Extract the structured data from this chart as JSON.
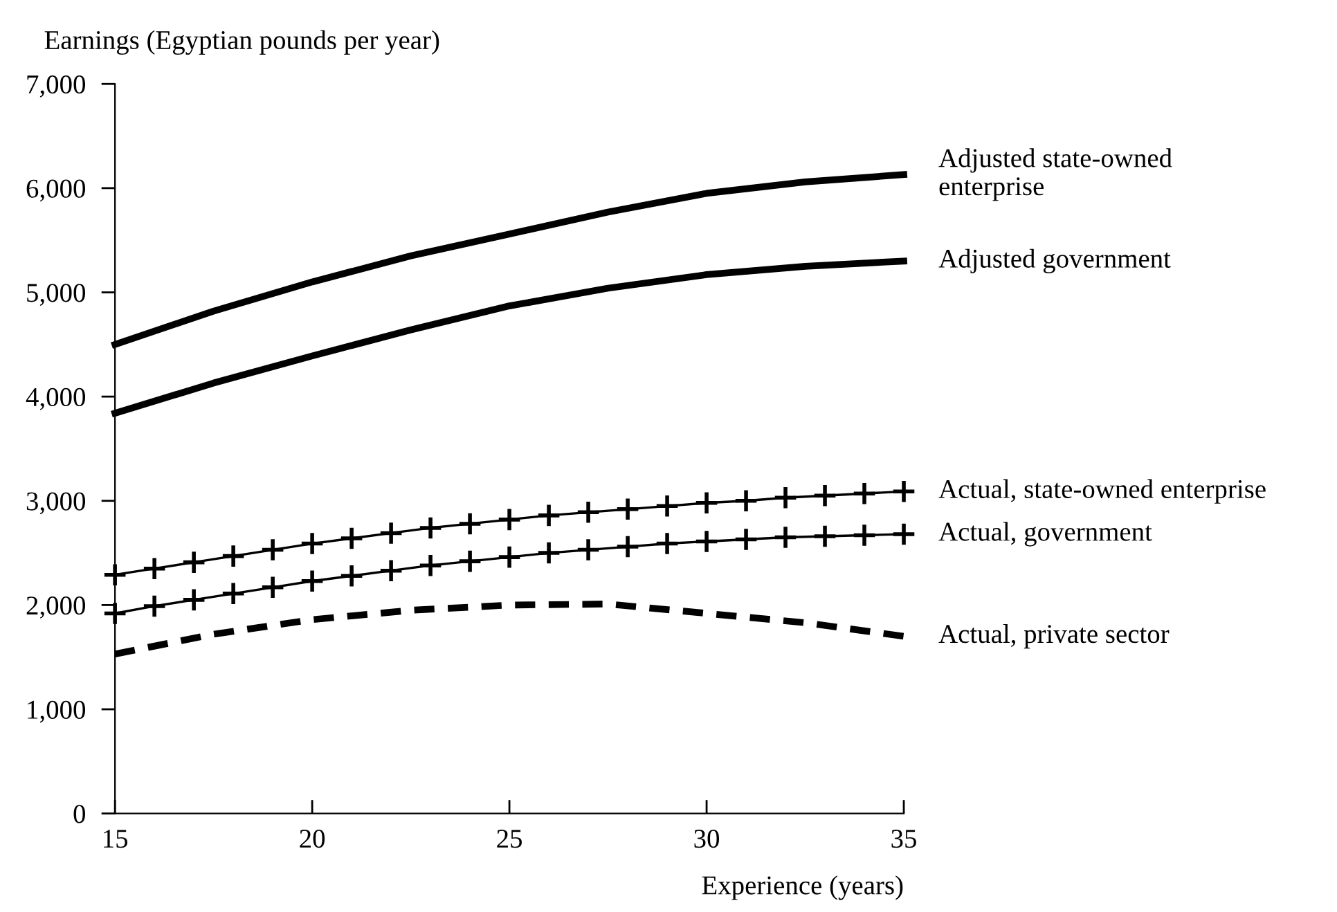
{
  "chart_data": {
    "type": "line",
    "xlabel": "Experience (years)",
    "ylabel": "Earnings (Egyptian pounds per year)",
    "xlim": [
      15,
      35
    ],
    "xticks": [
      15,
      20,
      25,
      30,
      35
    ],
    "ylim": [
      0,
      7000
    ],
    "yticks": [
      {
        "value": 0,
        "label": "0"
      },
      {
        "value": 1000,
        "label": "1,000"
      },
      {
        "value": 2000,
        "label": "2,000"
      },
      {
        "value": 3000,
        "label": "3,000"
      },
      {
        "value": 4000,
        "label": "4,000"
      },
      {
        "value": 5000,
        "label": "5,000"
      },
      {
        "value": 6000,
        "label": "6,000"
      },
      {
        "value": 7000,
        "label": "7,000"
      }
    ],
    "grid": false,
    "legend": false,
    "series": [
      {
        "name": "Adjusted state-owned\nenterprise",
        "color": "#000000",
        "line_style": "solid",
        "marker": "none",
        "x": [
          15,
          17.5,
          20,
          22.5,
          25,
          27.5,
          30,
          32.5,
          35
        ],
        "values": [
          4500,
          4820,
          5100,
          5350,
          5560,
          5770,
          5950,
          6060,
          6130
        ]
      },
      {
        "name": "Adjusted government",
        "color": "#000000",
        "line_style": "solid",
        "marker": "none",
        "x": [
          15,
          17.5,
          20,
          22.5,
          25,
          27.5,
          30,
          32.5,
          35
        ],
        "values": [
          3840,
          4130,
          4390,
          4640,
          4870,
          5040,
          5170,
          5250,
          5300
        ]
      },
      {
        "name": "Actual, state-owned enterprise",
        "color": "#000000",
        "line_style": "solid",
        "marker": "cross",
        "x": [
          15,
          16,
          17,
          18,
          19,
          20,
          21,
          22,
          23,
          24,
          25,
          26,
          27,
          28,
          29,
          30,
          31,
          32,
          33,
          34,
          35
        ],
        "values": [
          2290,
          2350,
          2410,
          2470,
          2530,
          2590,
          2640,
          2690,
          2740,
          2780,
          2820,
          2860,
          2890,
          2920,
          2950,
          2980,
          3000,
          3030,
          3050,
          3070,
          3090
        ]
      },
      {
        "name": "Actual, government",
        "color": "#000000",
        "line_style": "solid",
        "marker": "cross",
        "x": [
          15,
          16,
          17,
          18,
          19,
          20,
          21,
          22,
          23,
          24,
          25,
          26,
          27,
          28,
          29,
          30,
          31,
          32,
          33,
          34,
          35
        ],
        "values": [
          1920,
          1990,
          2050,
          2110,
          2170,
          2230,
          2280,
          2330,
          2380,
          2420,
          2460,
          2500,
          2530,
          2560,
          2590,
          2610,
          2630,
          2650,
          2660,
          2670,
          2680
        ]
      },
      {
        "name": "Actual, private sector",
        "color": "#000000",
        "line_style": "dashed",
        "marker": "none",
        "x": [
          15,
          17.5,
          20,
          22.5,
          25,
          27.5,
          30,
          32.5,
          35
        ],
        "values": [
          1530,
          1720,
          1860,
          1950,
          2000,
          2010,
          1920,
          1830,
          1700
        ]
      }
    ]
  }
}
